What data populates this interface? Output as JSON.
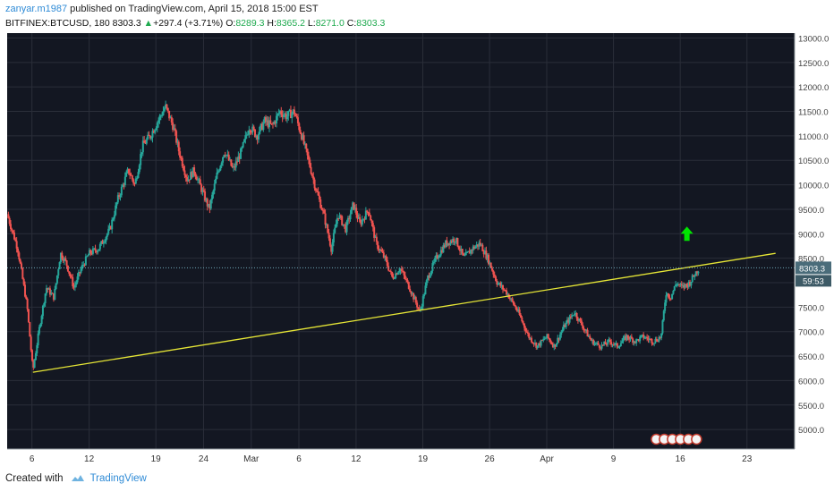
{
  "header": {
    "author": "zanyar.m1987",
    "published_text": " published on TradingView.com, April 15, 2018 15:00 EST",
    "symbol": "BITFINEX:BTCUSD, 180",
    "last": "8303.3",
    "change": "+297.4 (+3.71%)",
    "o_label": "O:",
    "o_value": "8289.3",
    "h_label": "H:",
    "h_value": "8365.2",
    "l_label": "L:",
    "l_value": "8271.0",
    "c_label": "C:",
    "c_value": "8303.3"
  },
  "footer": {
    "created_with": "Created with",
    "brand": "TradingView"
  },
  "colors": {
    "background": "#131722",
    "grid": "#2a2e39",
    "up": "#26a69a",
    "down": "#ef5350",
    "trendline": "#e5e536",
    "arrow": "#00e400",
    "price_badge": "#4a6c7a"
  },
  "chart_data": {
    "type": "candlestick",
    "ylim": [
      4600,
      13100
    ],
    "y_ticks": [
      5000,
      5500,
      6000,
      6500,
      7000,
      7500,
      8000,
      8500,
      9000,
      9500,
      10000,
      10500,
      11000,
      11500,
      12000,
      12500,
      13000
    ],
    "y_tick_labels": [
      "5000.0",
      "5500.0",
      "6000.0",
      "6500.0",
      "7000.0",
      "7500.0",
      "8000.0",
      "8500.0",
      "9000.0",
      "9500.0",
      "10000.0",
      "10500.0",
      "11000.0",
      "11500.0",
      "12000.0",
      "12500.0",
      "13000.0"
    ],
    "x_ticks": [
      "6",
      "12",
      "19",
      "24",
      "Mar",
      "6",
      "12",
      "19",
      "26",
      "Apr",
      "9",
      "16",
      "23"
    ],
    "x_tick_days": [
      6,
      12,
      19,
      24,
      29,
      34,
      40,
      47,
      54,
      60,
      67,
      74,
      81
    ],
    "x_range_days": [
      3.4,
      86
    ],
    "price_series": [
      [
        3.4,
        9400
      ],
      [
        4.5,
        8700
      ],
      [
        5.5,
        7500
      ],
      [
        6.1,
        6200
      ],
      [
        6.8,
        7100
      ],
      [
        7.5,
        7900
      ],
      [
        8.3,
        7700
      ],
      [
        9,
        8600
      ],
      [
        9.6,
        8400
      ],
      [
        10.4,
        7900
      ],
      [
        11.2,
        8300
      ],
      [
        12,
        8600
      ],
      [
        13,
        8700
      ],
      [
        14.2,
        9100
      ],
      [
        15,
        9700
      ],
      [
        16.1,
        10300
      ],
      [
        16.8,
        10000
      ],
      [
        17.6,
        10800
      ],
      [
        18.4,
        11000
      ],
      [
        19.2,
        11300
      ],
      [
        20,
        11600
      ],
      [
        20.8,
        11200
      ],
      [
        21.4,
        10700
      ],
      [
        22.3,
        10100
      ],
      [
        23,
        10300
      ],
      [
        23.8,
        9900
      ],
      [
        24.6,
        9500
      ],
      [
        25.4,
        10200
      ],
      [
        26.2,
        10700
      ],
      [
        27.1,
        10300
      ],
      [
        28,
        10700
      ],
      [
        28.8,
        11200
      ],
      [
        29.6,
        11000
      ],
      [
        30.4,
        11300
      ],
      [
        31.2,
        11200
      ],
      [
        32,
        11500
      ],
      [
        32.7,
        11400
      ],
      [
        33.5,
        11500
      ],
      [
        34.3,
        11000
      ],
      [
        35,
        10500
      ],
      [
        35.8,
        9900
      ],
      [
        36.6,
        9400
      ],
      [
        37.4,
        8700
      ],
      [
        38.1,
        9400
      ],
      [
        38.9,
        9100
      ],
      [
        39.7,
        9600
      ],
      [
        40.4,
        9200
      ],
      [
        41.3,
        9500
      ],
      [
        42.1,
        8800
      ],
      [
        43,
        8500
      ],
      [
        43.8,
        8100
      ],
      [
        44.6,
        8300
      ],
      [
        45.6,
        7900
      ],
      [
        46.7,
        7400
      ],
      [
        47.5,
        8100
      ],
      [
        48.4,
        8500
      ],
      [
        49.4,
        8800
      ],
      [
        50.4,
        8900
      ],
      [
        51.3,
        8500
      ],
      [
        52.2,
        8700
      ],
      [
        53,
        8800
      ],
      [
        53.8,
        8500
      ],
      [
        54.8,
        8000
      ],
      [
        55.8,
        7800
      ],
      [
        57,
        7400
      ],
      [
        58.1,
        6900
      ],
      [
        59,
        6700
      ],
      [
        60,
        6900
      ],
      [
        60.8,
        6700
      ],
      [
        61.8,
        7100
      ],
      [
        62.9,
        7400
      ],
      [
        63.8,
        7100
      ],
      [
        64.7,
        6800
      ],
      [
        65.7,
        6700
      ],
      [
        66.6,
        6800
      ],
      [
        67.4,
        6700
      ],
      [
        68.4,
        6900
      ],
      [
        69.3,
        6800
      ],
      [
        70.1,
        6900
      ],
      [
        71.2,
        6800
      ],
      [
        72,
        6900
      ],
      [
        72.5,
        7800
      ],
      [
        73,
        7700
      ],
      [
        73.6,
        8000
      ],
      [
        74.2,
        7900
      ],
      [
        75,
        8000
      ],
      [
        75.6,
        8200
      ],
      [
        76,
        8300
      ]
    ],
    "trendline": [
      [
        6.1,
        6170
      ],
      [
        84,
        8600
      ]
    ],
    "current_price": 8303.3,
    "current_price_label": "8303.3",
    "countdown_label": "59:53",
    "arrow_at": [
      74.7,
      9000
    ]
  }
}
